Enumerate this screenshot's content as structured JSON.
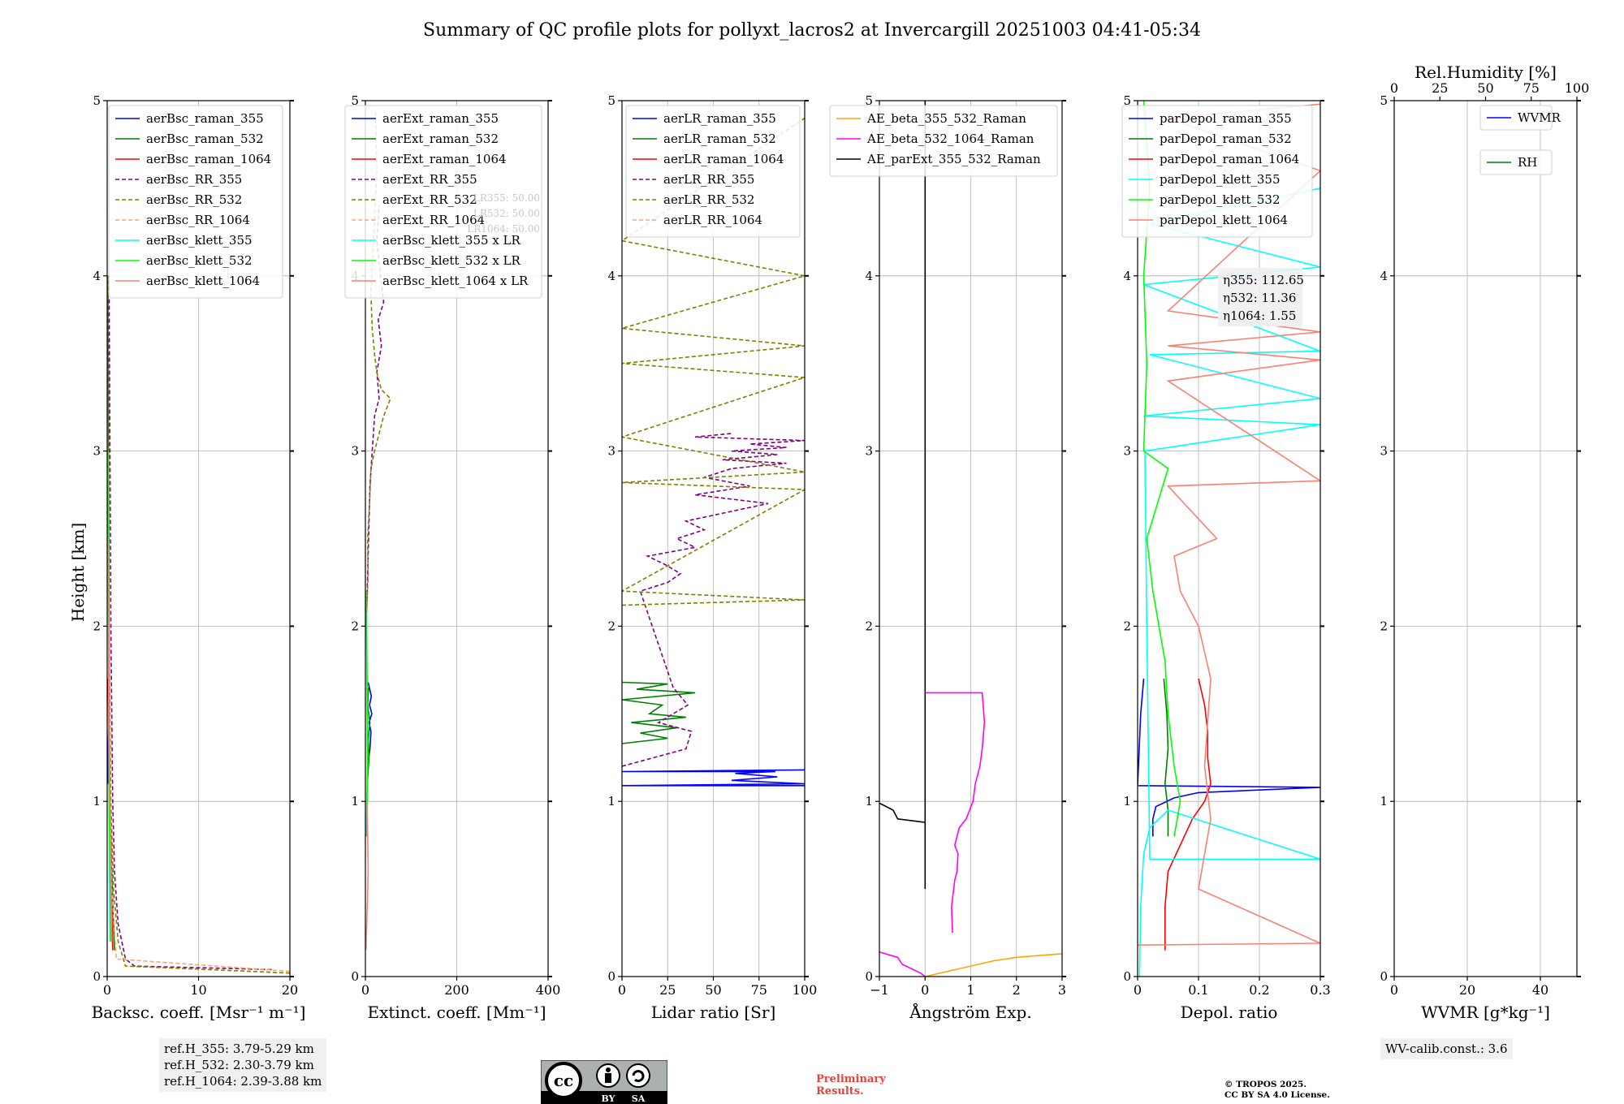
{
  "title": "Summary of QC profile plots for pollyxt_lacros2 at Invercargill 20251003 04:41-05:34",
  "ylabel": "Height [km]",
  "yticks": [
    "0",
    "1",
    "2",
    "3",
    "4",
    "5"
  ],
  "chart_data": [
    {
      "type": "line",
      "id": "bsc",
      "xlabel": "Backsc. coeff. [Msr⁻¹ m⁻¹]",
      "xlim": [
        0,
        20
      ],
      "ylim": [
        0,
        5
      ],
      "xticks": [
        0,
        10,
        20
      ],
      "legend": "top-right",
      "series": [
        {
          "name": "aerBsc_raman_355",
          "color": "#0000ff",
          "dash": false,
          "x": [
            0.1,
            0.1,
            0.2,
            0.2
          ],
          "y": [
            1.1,
            1.3,
            1.5,
            1.7
          ]
        },
        {
          "name": "aerBsc_raman_532",
          "color": "#008000",
          "dash": false,
          "x": [
            0.8,
            0.7,
            0.5,
            0.3,
            0.2,
            0.1
          ],
          "y": [
            0.15,
            0.3,
            0.6,
            1.0,
            1.6,
            4.0
          ]
        },
        {
          "name": "aerBsc_raman_1064",
          "color": "#ff0000",
          "dash": false,
          "x": [
            0.6,
            0.5,
            0.3,
            0.2,
            0.1
          ],
          "y": [
            0.15,
            0.4,
            0.8,
            1.2,
            1.7
          ]
        },
        {
          "name": "aerBsc_RR_355",
          "color": "#800080",
          "dash": true,
          "x": [
            18,
            3,
            2,
            1.2,
            0.8,
            0.6,
            0.4,
            0.3,
            0.2
          ],
          "y": [
            0.04,
            0.06,
            0.1,
            0.3,
            0.6,
            1.0,
            2.0,
            3.0,
            4.0
          ]
        },
        {
          "name": "aerBsc_RR_532",
          "color": "#808000",
          "dash": true,
          "x": [
            20,
            2,
            1.2,
            0.7,
            0.4,
            0.2,
            0.1
          ],
          "y": [
            0.02,
            0.06,
            0.2,
            0.5,
            1.0,
            2.0,
            4.0
          ]
        },
        {
          "name": "aerBsc_RR_1064",
          "color": "#ffa07a",
          "dash": true,
          "x": [
            20,
            1,
            0.5,
            0.3,
            0.2
          ],
          "y": [
            0.03,
            0.1,
            0.5,
            1.0,
            2.0
          ]
        },
        {
          "name": "aerBsc_klett_355",
          "color": "#00ffff",
          "dash": false,
          "x": [
            0.3,
            0.2,
            0.1
          ],
          "y": [
            0.2,
            1.0,
            3.0
          ]
        },
        {
          "name": "aerBsc_klett_532",
          "color": "#00ff00",
          "dash": false,
          "x": [
            0.4,
            0.2,
            0.1
          ],
          "y": [
            0.2,
            1.0,
            3.0
          ]
        },
        {
          "name": "aerBsc_klett_1064",
          "color": "#fa8072",
          "dash": false,
          "x": [
            0.5,
            0.3,
            0.1
          ],
          "y": [
            0.2,
            1.0,
            2.5
          ]
        }
      ]
    },
    {
      "type": "line",
      "id": "ext",
      "xlabel": "Extinct. coeff. [Mm⁻¹]",
      "xlim": [
        0,
        400
      ],
      "ylim": [
        0,
        5
      ],
      "xticks": [
        0,
        200,
        400
      ],
      "legend": "top-right",
      "annotation": [
        "LR355: 50.00",
        "LR532: 50.00",
        "LR1064: 50.00"
      ],
      "series": [
        {
          "name": "aerExt_raman_355",
          "color": "#0000ff",
          "dash": false,
          "x": [
            5,
            10,
            12,
            8,
            14,
            9,
            13,
            6
          ],
          "y": [
            1.2,
            1.3,
            1.4,
            1.45,
            1.5,
            1.55,
            1.6,
            1.68
          ]
        },
        {
          "name": "aerExt_raman_532",
          "color": "#008000",
          "dash": false,
          "x": [
            4,
            8,
            6,
            10,
            5,
            7
          ],
          "y": [
            1.1,
            1.25,
            1.35,
            1.45,
            1.55,
            1.65
          ]
        },
        {
          "name": "aerExt_raman_1064",
          "color": "#ff0000",
          "dash": false,
          "x": [],
          "y": []
        },
        {
          "name": "aerExt_RR_355",
          "color": "#800080",
          "dash": true,
          "x": [
            2,
            5,
            8,
            10,
            15,
            20,
            30,
            25,
            35,
            28,
            40,
            33,
            25,
            30
          ],
          "y": [
            2.0,
            2.3,
            2.6,
            2.8,
            3.0,
            3.2,
            3.3,
            3.45,
            3.6,
            3.75,
            3.85,
            4.0,
            4.2,
            4.4
          ]
        },
        {
          "name": "aerExt_RR_532",
          "color": "#808000",
          "dash": true,
          "x": [
            3,
            6,
            5,
            9,
            12,
            20,
            40,
            55,
            35,
            25,
            20,
            15,
            12,
            18,
            25,
            22
          ],
          "y": [
            2.1,
            2.3,
            2.5,
            2.7,
            2.9,
            3.0,
            3.2,
            3.3,
            3.35,
            3.45,
            3.55,
            3.7,
            3.9,
            4.2,
            4.6,
            4.95
          ]
        },
        {
          "name": "aerExt_RR_1064",
          "color": "#ffa07a",
          "dash": true,
          "x": [],
          "y": []
        },
        {
          "name": "aerBsc_klett_355 x LR",
          "color": "#00ffff",
          "dash": false,
          "x": [
            2,
            4,
            3,
            2
          ],
          "y": [
            0.8,
            1.2,
            1.8,
            2.2
          ]
        },
        {
          "name": "aerBsc_klett_532 x LR",
          "color": "#00ff00",
          "dash": false,
          "x": [
            3,
            5,
            4,
            2
          ],
          "y": [
            0.8,
            1.2,
            1.6,
            2.2
          ]
        },
        {
          "name": "aerBsc_klett_1064 x LR",
          "color": "#fa8072",
          "dash": false,
          "x": [
            1,
            4,
            6,
            5,
            3
          ],
          "y": [
            0.15,
            0.4,
            0.6,
            0.8,
            1.0
          ]
        }
      ]
    },
    {
      "type": "line",
      "id": "lr",
      "xlabel": "Lidar ratio [Sr]",
      "xlim": [
        0,
        100
      ],
      "ylim": [
        0,
        5
      ],
      "xticks": [
        0,
        25,
        50,
        75,
        100
      ],
      "legend": "top-right",
      "series": [
        {
          "name": "aerLR_raman_355",
          "color": "#0000ff",
          "dash": false,
          "x": [
            100,
            0,
            100,
            60,
            85,
            62,
            84,
            0,
            100
          ],
          "y": [
            1.09,
            1.09,
            1.1,
            1.12,
            1.14,
            1.16,
            1.17,
            1.17,
            1.18
          ]
        },
        {
          "name": "aerLR_raman_532",
          "color": "#008000",
          "dash": false,
          "x": [
            0,
            25,
            10,
            30,
            5,
            35,
            15,
            22,
            0,
            40,
            8,
            25,
            0
          ],
          "y": [
            1.33,
            1.36,
            1.39,
            1.42,
            1.45,
            1.48,
            1.5,
            1.55,
            1.58,
            1.62,
            1.64,
            1.67,
            1.68
          ]
        },
        {
          "name": "aerLR_raman_1064",
          "color": "#ff0000",
          "dash": false,
          "x": [],
          "y": []
        },
        {
          "name": "aerLR_RR_355",
          "color": "#800080",
          "dash": true,
          "x": [
            0,
            35,
            38,
            20,
            28,
            36,
            28,
            10,
            25,
            32,
            24,
            14,
            40,
            30,
            45,
            35,
            80,
            40,
            70,
            45,
            60,
            90,
            55,
            85,
            60,
            90,
            70,
            100,
            40,
            60
          ],
          "y": [
            1.2,
            1.3,
            1.4,
            1.45,
            1.5,
            1.55,
            1.65,
            2.2,
            2.25,
            2.3,
            2.35,
            2.4,
            2.45,
            2.5,
            2.55,
            2.6,
            2.7,
            2.75,
            2.8,
            2.85,
            2.9,
            2.93,
            2.95,
            2.98,
            3.0,
            3.02,
            3.04,
            3.06,
            3.08,
            3.1
          ]
        },
        {
          "name": "aerLR_RR_532",
          "color": "#808000",
          "dash": true,
          "x": [
            0,
            100,
            0,
            100,
            0,
            100,
            0,
            100,
            0,
            100,
            0,
            100,
            0,
            100
          ],
          "y": [
            2.12,
            2.15,
            2.2,
            2.78,
            2.82,
            2.88,
            3.08,
            3.42,
            3.5,
            3.6,
            3.7,
            4.0,
            4.2,
            4.9
          ]
        },
        {
          "name": "aerLR_RR_1064",
          "color": "#ffa07a",
          "dash": true,
          "x": [],
          "y": []
        }
      ]
    },
    {
      "type": "line",
      "id": "ae",
      "xlabel": "Ångström Exp.",
      "xlim": [
        -1,
        3
      ],
      "ylim": [
        0,
        5
      ],
      "xticks": [
        -1,
        0,
        1,
        2,
        3
      ],
      "legend": "top-left",
      "series": [
        {
          "name": "AE_beta_355_532_Raman",
          "color": "#ffa500",
          "dash": false,
          "x": [
            0,
            0.5,
            1.0,
            1.5,
            2.0,
            2.5,
            3.0
          ],
          "y": [
            0.0,
            0.03,
            0.06,
            0.09,
            0.11,
            0.12,
            0.13
          ]
        },
        {
          "name": "AE_beta_532_1064_Raman",
          "color": "#ff00ff",
          "dash": false,
          "x": [
            -1,
            -0.6,
            -0.5,
            -0.1,
            0.0
          ],
          "y": [
            0.14,
            0.11,
            0.07,
            0.02,
            0.0
          ]
        },
        {
          "name": "AE_parExt_355_532_Raman",
          "color": "#000000",
          "dash": false,
          "x": [
            -1,
            -0.7,
            -0.6,
            0.0,
            0.0,
            0.0,
            0.0
          ],
          "y": [
            0.99,
            0.95,
            0.9,
            0.88,
            0.5,
            2.0,
            5.0
          ]
        }
      ],
      "extra_series": [
        {
          "name": "AE_beta_532_1064_Raman",
          "color": "#ff00ff",
          "x": [
            0.6,
            0.58,
            0.65,
            0.7,
            0.72,
            0.65,
            0.75,
            0.9,
            1.05,
            1.1,
            1.2,
            1.25,
            1.3,
            1.25,
            0.0
          ],
          "y": [
            0.25,
            0.4,
            0.55,
            0.6,
            0.7,
            0.75,
            0.85,
            0.9,
            1.0,
            1.1,
            1.2,
            1.3,
            1.45,
            1.62,
            1.62
          ]
        }
      ]
    },
    {
      "type": "line",
      "id": "depol",
      "xlabel": "Depol. ratio",
      "xlim": [
        0.0,
        0.3
      ],
      "ylim": [
        0,
        5
      ],
      "xticks": [
        0.0,
        0.1,
        0.2,
        0.3
      ],
      "legend": "top-right",
      "annotation": [
        "η355: 112.65",
        "η532: 11.36",
        "η1064: 1.55"
      ],
      "series": [
        {
          "name": "parDepol_raman_355",
          "color": "#0000ff",
          "dash": false,
          "x": [
            0.025,
            0.025,
            0.03,
            0.06,
            0.1,
            0.3,
            0.0,
            0.005,
            0.01
          ],
          "y": [
            0.8,
            0.9,
            0.97,
            1.02,
            1.05,
            1.08,
            1.09,
            1.5,
            1.7
          ]
        },
        {
          "name": "parDepol_raman_532",
          "color": "#008000",
          "dash": false,
          "x": [
            0.05,
            0.05,
            0.045,
            0.05,
            0.048,
            0.043
          ],
          "y": [
            0.8,
            0.95,
            1.1,
            1.3,
            1.5,
            1.7
          ]
        },
        {
          "name": "parDepol_raman_1064",
          "color": "#ff0000",
          "dash": false,
          "x": [
            0.045,
            0.045,
            0.05,
            0.07,
            0.09,
            0.11,
            0.12,
            0.115,
            0.115,
            0.11,
            0.1
          ],
          "y": [
            0.15,
            0.4,
            0.6,
            0.75,
            0.9,
            1.0,
            1.1,
            1.25,
            1.4,
            1.55,
            1.7
          ]
        },
        {
          "name": "parDepol_klett_355",
          "color": "#00ffff",
          "dash": false,
          "x": [
            0.003,
            0.005,
            0.01,
            0.02,
            0.05,
            0.3,
            0.02,
            0.015,
            0.012,
            0.3,
            0.01,
            0.3,
            0.02,
            0.3,
            0.01,
            0.3,
            0.02,
            0.3
          ],
          "y": [
            0.0,
            0.4,
            0.7,
            0.85,
            0.95,
            0.67,
            0.67,
            2.0,
            3.0,
            3.15,
            3.2,
            3.3,
            3.55,
            3.57,
            3.95,
            4.05,
            4.3,
            4.5
          ]
        },
        {
          "name": "parDepol_klett_532",
          "color": "#00ff00",
          "dash": false,
          "x": [
            0.06,
            0.065,
            0.07,
            0.06,
            0.05,
            0.045,
            0.035,
            0.025,
            0.015,
            0.05,
            0.01,
            0.015,
            0.01,
            0.02,
            0.01
          ],
          "y": [
            0.8,
            0.9,
            1.0,
            1.2,
            1.5,
            1.8,
            2.0,
            2.2,
            2.5,
            2.9,
            3.0,
            3.5,
            4.0,
            4.5,
            5.0
          ]
        },
        {
          "name": "parDepol_klett_1064",
          "color": "#fa8072",
          "dash": false,
          "x": [
            0.0,
            0.3,
            0.1,
            0.12,
            0.11,
            0.12,
            0.1,
            0.07,
            0.06,
            0.13,
            0.05,
            0.3,
            0.05,
            0.3,
            0.05,
            0.3,
            0.05,
            0.3,
            0.05,
            0.3
          ],
          "y": [
            0.18,
            0.19,
            0.5,
            0.9,
            1.2,
            1.7,
            2.0,
            2.2,
            2.4,
            2.5,
            2.8,
            2.83,
            3.4,
            3.52,
            3.6,
            3.68,
            3.8,
            4.6,
            4.9,
            4.98
          ]
        }
      ]
    },
    {
      "type": "line",
      "id": "wv",
      "xlabel": "WVMR [g*kg⁻¹]",
      "xlim": [
        0,
        50
      ],
      "ylim": [
        0,
        5
      ],
      "xticks": [
        0,
        20,
        40
      ],
      "secondary_xlabel": "Rel.Humidity [%]",
      "secondary_xlim": [
        0,
        100
      ],
      "secondary_xticks": [
        0,
        25,
        50,
        75,
        100
      ],
      "legend": "top-right",
      "series": [
        {
          "name": "WVMR",
          "color": "#0000ff",
          "dash": false,
          "x": [],
          "y": []
        },
        {
          "name": "RH",
          "color": "#008000",
          "dash": false,
          "x": [],
          "y": []
        }
      ]
    }
  ],
  "refbox": [
    "ref.H_355: 3.79-5.29 km",
    "ref.H_532: 2.30-3.79 km",
    "ref.H_1064: 2.39-3.88 km"
  ],
  "wvbox": "WV-calib.const.: 3.6",
  "prelim": [
    "Preliminary",
    "Results."
  ],
  "copyright": [
    "© TROPOS 2025.",
    "CC BY SA 4.0 License."
  ],
  "cc_badge": {
    "main": "cc",
    "by": "BY",
    "sa": "SA"
  }
}
